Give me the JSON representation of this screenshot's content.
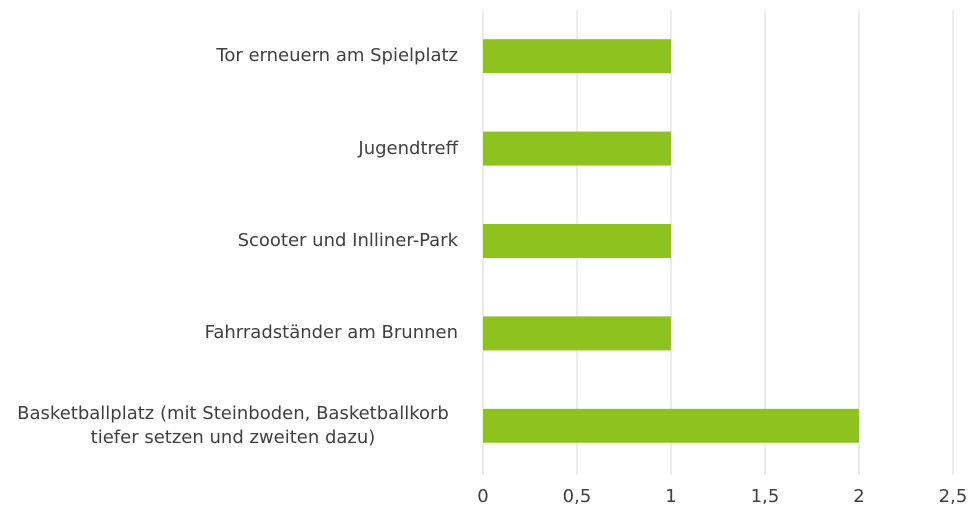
{
  "chart_data": {
    "type": "barh",
    "categories": [
      "Tor erneuern am Spielplatz",
      "Jugendtreff ",
      "Scooter und Inlliner-Park",
      "Fahrradständer am Brunnen ",
      "Basketballplatz (mit Steinboden, Basketballkorb tiefer setzen und zweiten dazu)"
    ],
    "values": [
      1,
      1,
      1,
      1,
      2
    ],
    "color": "#8dc21f",
    "xlim": [
      0,
      2.5
    ],
    "xticks": [
      0,
      {
        "value": 0.5,
        "label": "0,5"
      },
      1,
      {
        "value": 1.5,
        "label": "1,5"
      },
      2,
      {
        "value": 2.5,
        "label": "2,5"
      }
    ],
    "grid": true
  }
}
